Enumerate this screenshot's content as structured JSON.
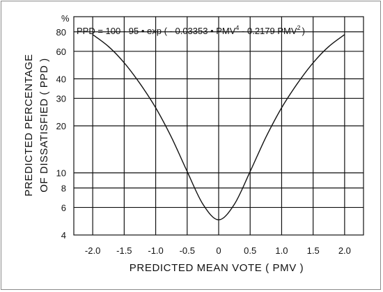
{
  "chart_data": {
    "type": "line",
    "title": "",
    "equation": {
      "main": "PPD = 100 - 95 • exp ( - 0.03353 • PMV",
      "exp1": "4",
      "mid": " - 0.2179 PMV",
      "exp2": "2",
      "close": ")"
    },
    "xlabel": "PREDICTED MEAN VOTE ( PMV )",
    "ylabel_line1": "PREDICTED PERCENTAGE",
    "ylabel_line2": "OF DISSATISFIED ( PPD )",
    "y_unit": "%",
    "y_scale": "log",
    "xlim": [
      -2.3,
      2.3
    ],
    "ylim": [
      4,
      100
    ],
    "x_ticks": [
      {
        "value": -2.0,
        "label": "-2.0"
      },
      {
        "value": -1.5,
        "label": "-1.5"
      },
      {
        "value": -1.0,
        "label": "-1.0"
      },
      {
        "value": -0.5,
        "label": "-0.5"
      },
      {
        "value": 0.0,
        "label": "0"
      },
      {
        "value": 0.5,
        "label": "0.5"
      },
      {
        "value": 1.0,
        "label": "1.0"
      },
      {
        "value": 1.5,
        "label": "1.5"
      },
      {
        "value": 2.0,
        "label": "2.0"
      }
    ],
    "y_ticks": [
      {
        "value": 4,
        "label": "4"
      },
      {
        "value": 6,
        "label": "6"
      },
      {
        "value": 8,
        "label": "8"
      },
      {
        "value": 10,
        "label": "10"
      },
      {
        "value": 20,
        "label": "20"
      },
      {
        "value": 30,
        "label": "30"
      },
      {
        "value": 40,
        "label": "40"
      },
      {
        "value": 60,
        "label": "60"
      },
      {
        "value": 80,
        "label": "80"
      }
    ],
    "grid": true,
    "series": [
      {
        "x": [
          -2.0,
          -1.75,
          -1.5,
          -1.25,
          -1.0,
          -0.75,
          -0.5,
          -0.25,
          0.0,
          0.25,
          0.5,
          0.75,
          1.0,
          1.25,
          1.5,
          1.75,
          2.0
        ],
        "y": [
          76.8,
          64.5,
          50.7,
          37.3,
          26.1,
          16.9,
          10.2,
          6.3,
          5.0,
          6.3,
          10.2,
          16.9,
          26.1,
          37.3,
          50.7,
          64.5,
          76.8
        ]
      }
    ]
  }
}
